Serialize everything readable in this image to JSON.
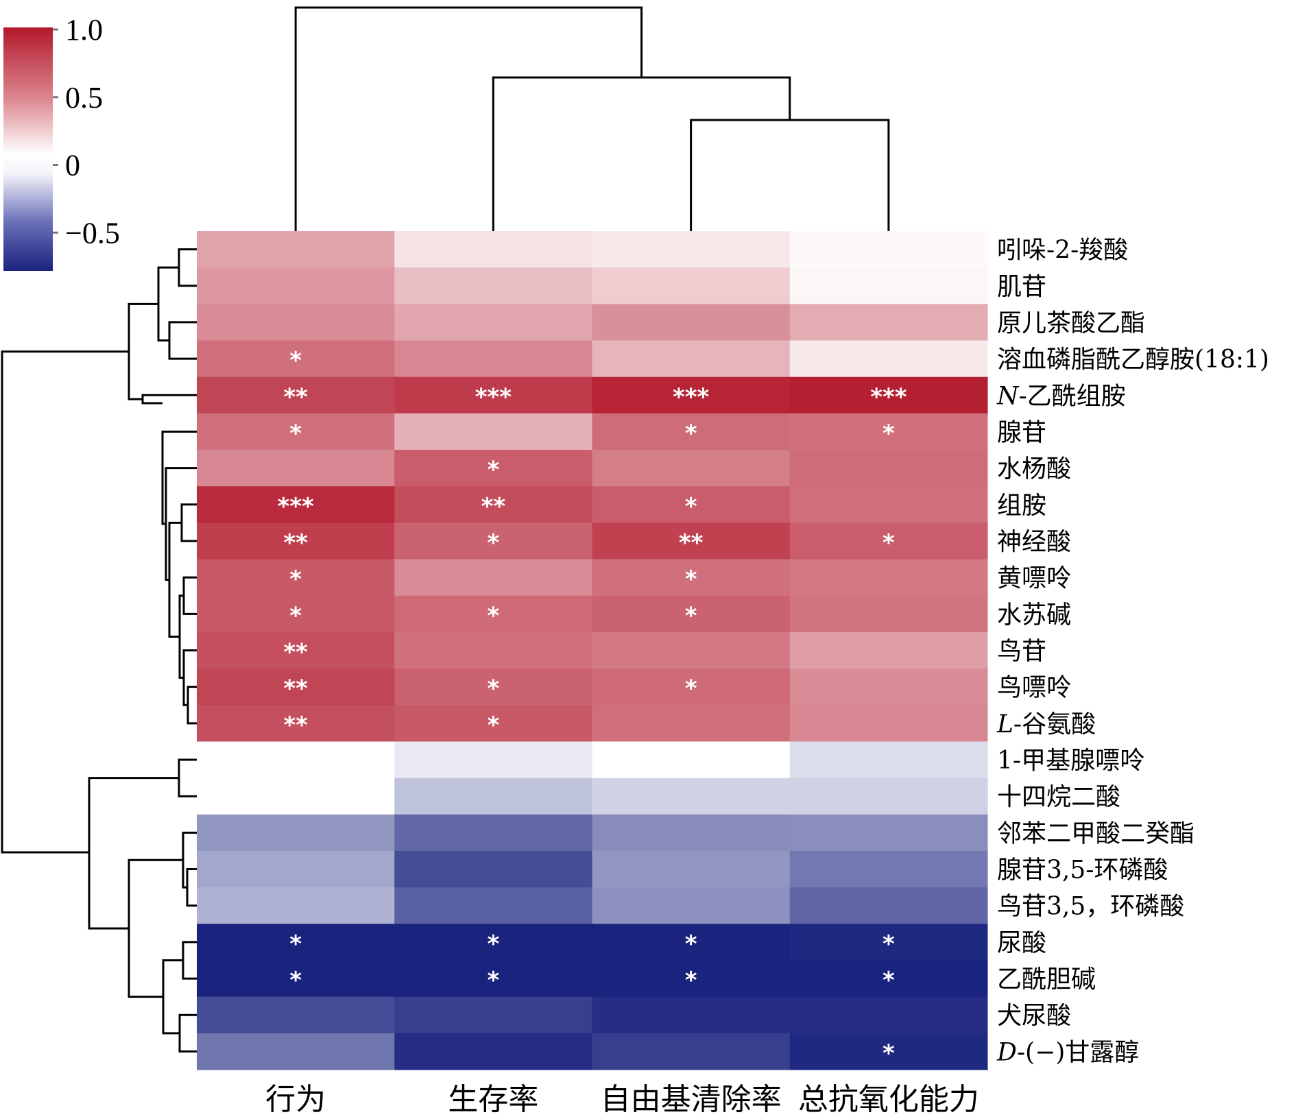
{
  "chart_data": {
    "type": "heatmap",
    "title": "",
    "columns": [
      "行为",
      "生存率",
      "自由基清除率",
      "总抗氧化能力"
    ],
    "rows": [
      {
        "label": "吲哚-2-羧酸",
        "italic_prefix": "",
        "values": [
          0.4,
          0.12,
          0.1,
          0.03
        ],
        "sig": [
          "",
          "",
          "",
          ""
        ]
      },
      {
        "label": "肌苷",
        "italic_prefix": "",
        "values": [
          0.45,
          0.28,
          0.22,
          0.04
        ],
        "sig": [
          "",
          "",
          "",
          ""
        ]
      },
      {
        "label": "原儿茶酸乙酯",
        "italic_prefix": "",
        "values": [
          0.5,
          0.38,
          0.48,
          0.36
        ],
        "sig": [
          "",
          "",
          "",
          ""
        ]
      },
      {
        "label": "溶血磷脂酰乙醇胺(18:1)",
        "italic_prefix": "",
        "values": [
          0.62,
          0.52,
          0.32,
          0.1
        ],
        "sig": [
          "*",
          "",
          "",
          ""
        ]
      },
      {
        "label": "-乙酰组胺",
        "italic_prefix": "N",
        "values": [
          0.8,
          0.85,
          0.95,
          0.97
        ],
        "sig": [
          "**",
          "***",
          "***",
          "***"
        ]
      },
      {
        "label": "腺苷",
        "italic_prefix": "",
        "values": [
          0.62,
          0.34,
          0.63,
          0.62
        ],
        "sig": [
          "*",
          "",
          "*",
          "*"
        ]
      },
      {
        "label": "水杨酸",
        "italic_prefix": "",
        "values": [
          0.52,
          0.7,
          0.56,
          0.63
        ],
        "sig": [
          "",
          "*",
          "",
          ""
        ]
      },
      {
        "label": "组胺",
        "italic_prefix": "",
        "values": [
          0.92,
          0.77,
          0.7,
          0.62
        ],
        "sig": [
          "***",
          "**",
          "*",
          ""
        ]
      },
      {
        "label": "神经酸",
        "italic_prefix": "",
        "values": [
          0.83,
          0.68,
          0.82,
          0.7
        ],
        "sig": [
          "**",
          "*",
          "**",
          "*"
        ]
      },
      {
        "label": "黄嘌呤",
        "italic_prefix": "",
        "values": [
          0.72,
          0.5,
          0.62,
          0.58
        ],
        "sig": [
          "*",
          "",
          "*",
          ""
        ]
      },
      {
        "label": "水苏碱",
        "italic_prefix": "",
        "values": [
          0.72,
          0.64,
          0.68,
          0.6
        ],
        "sig": [
          "*",
          "*",
          "*",
          ""
        ]
      },
      {
        "label": "鸟苷",
        "italic_prefix": "",
        "values": [
          0.76,
          0.62,
          0.58,
          0.42
        ],
        "sig": [
          "**",
          "",
          "",
          ""
        ]
      },
      {
        "label": "鸟嘌呤",
        "italic_prefix": "",
        "values": [
          0.8,
          0.68,
          0.64,
          0.5
        ],
        "sig": [
          "**",
          "*",
          "*",
          ""
        ]
      },
      {
        "label": "-谷氨酸",
        "italic_prefix": "L",
        "values": [
          0.76,
          0.72,
          0.62,
          0.52
        ],
        "sig": [
          "**",
          "*",
          "",
          ""
        ]
      },
      {
        "label": "1-甲基腺嘌呤",
        "italic_prefix": "",
        "values": [
          0.0,
          -0.08,
          0.0,
          -0.12
        ],
        "sig": [
          "",
          "",
          "",
          ""
        ]
      },
      {
        "label": "十四烷二酸",
        "italic_prefix": "",
        "values": [
          0.0,
          -0.22,
          -0.16,
          -0.17
        ],
        "sig": [
          "",
          "",
          "",
          ""
        ]
      },
      {
        "label": "邻苯二甲酸二癸酯",
        "italic_prefix": "",
        "values": [
          -0.38,
          -0.55,
          -0.42,
          -0.41
        ],
        "sig": [
          "",
          "",
          "",
          ""
        ]
      },
      {
        "label": "腺苷3,5-环磷酸",
        "italic_prefix": "",
        "values": [
          -0.32,
          -0.65,
          -0.38,
          -0.49
        ],
        "sig": [
          "",
          "",
          "",
          ""
        ]
      },
      {
        "label": "鸟苷3,5，环磷酸",
        "italic_prefix": "",
        "values": [
          -0.28,
          -0.58,
          -0.4,
          -0.56
        ],
        "sig": [
          "",
          "",
          "",
          ""
        ]
      },
      {
        "label": "尿酸",
        "italic_prefix": "",
        "values": [
          -0.82,
          -0.82,
          -0.8,
          -0.78
        ],
        "sig": [
          "*",
          "*",
          "*",
          "*"
        ]
      },
      {
        "label": "乙酰胆碱",
        "italic_prefix": "",
        "values": [
          -0.82,
          -0.82,
          -0.84,
          -0.82
        ],
        "sig": [
          "*",
          "*",
          "*",
          "*"
        ]
      },
      {
        "label": "犬尿酸",
        "italic_prefix": "",
        "values": [
          -0.65,
          -0.7,
          -0.76,
          -0.76
        ],
        "sig": [
          "",
          "",
          "",
          ""
        ]
      },
      {
        "label": "-(−)甘露醇",
        "italic_prefix": "D",
        "values": [
          -0.5,
          -0.76,
          -0.7,
          -0.78
        ],
        "sig": [
          "",
          "",
          "",
          "*"
        ]
      }
    ],
    "colorbar": {
      "ticks": [
        1.0,
        0.5,
        0,
        -0.5
      ],
      "tick_labels": [
        "1.0",
        "0.5",
        "0",
        "−0.5"
      ],
      "range": [
        -0.8,
        1.0
      ],
      "colors": {
        "high": "#b2182b",
        "mid": "#ffffff",
        "low": "#1a237e"
      }
    },
    "column_dendrogram": "((行为),(生存率,(自由基清除率,总抗氧化能力)))",
    "row_clusters": "two main clusters: positive (rows 1-14) and negative (rows 15-23)",
    "legend_position": "top-left"
  }
}
